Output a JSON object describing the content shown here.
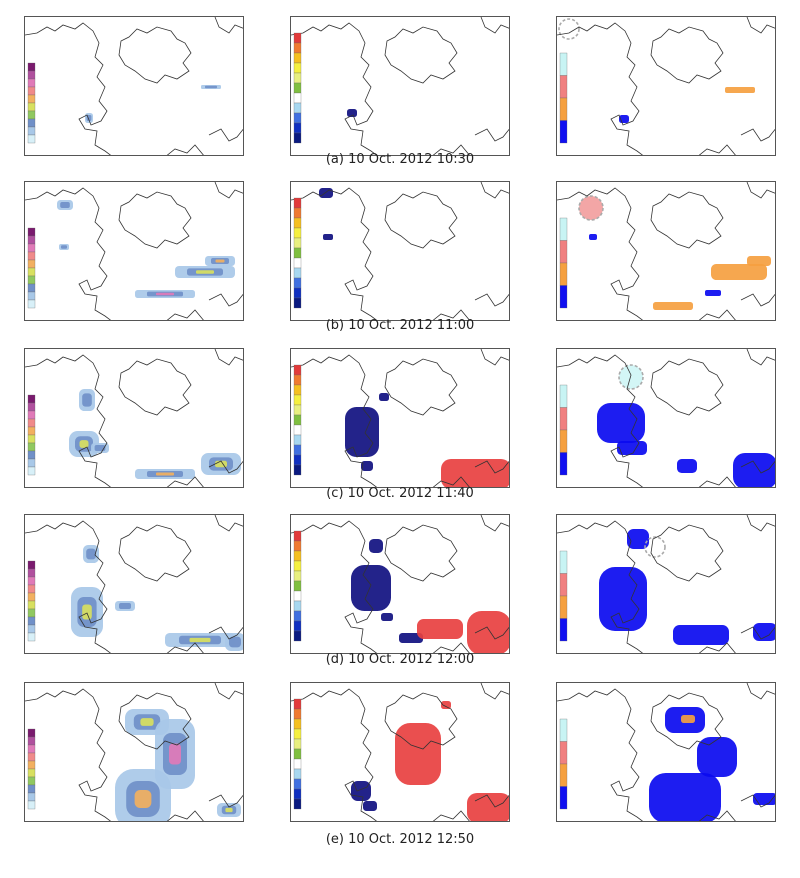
{
  "captions": [
    "(a) 10 Oct. 2012 10:30",
    "(b) 10 Oct. 2012 11:00",
    "(c) 10 Oct. 2012 11:40",
    "(d) 10 Oct. 2012 12:00",
    "(e) 10 Oct. 2012 12:50"
  ],
  "colors": {
    "rain_scale": [
      "#7a1a6e",
      "#b0509e",
      "#e07ab8",
      "#f08a8a",
      "#f2b060",
      "#d8e060",
      "#90c860",
      "#7090c8",
      "#a8c8e8",
      "#d8f0f8"
    ],
    "velocity_scale": [
      "#e23a3a",
      "#f07a30",
      "#f5c020",
      "#f5f040",
      "#e8f080",
      "#80c040",
      "#ffffff",
      "#a8d8f0",
      "#4070e0",
      "#1030c0",
      "#0a1a80"
    ],
    "danger_scale": [
      "#c8f4f4",
      "#f08080",
      "#f5a040",
      "#1010f0"
    ],
    "danger_blue": "#0a0af0",
    "danger_orange": "#f5a040",
    "velocity_navy": "#101080",
    "velocity_red": "#e84040"
  }
}
